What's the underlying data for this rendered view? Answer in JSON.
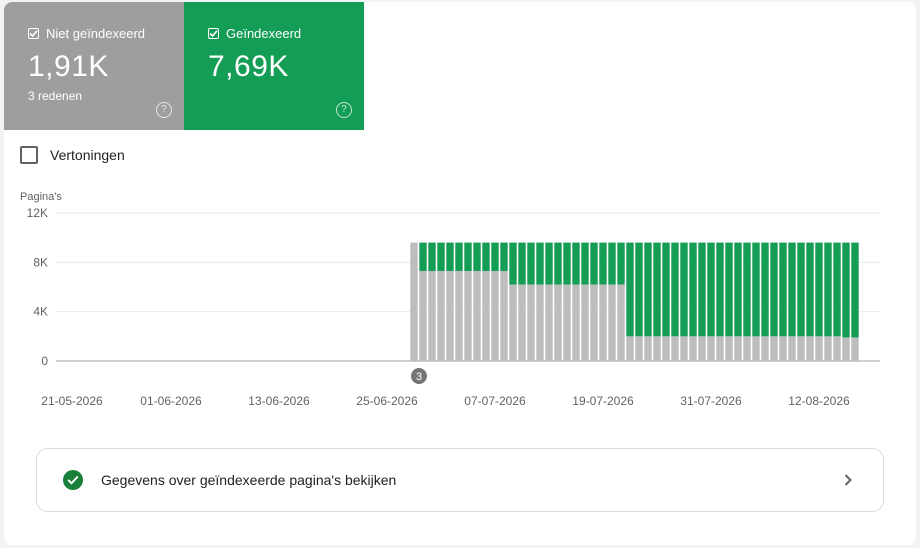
{
  "tiles": {
    "not_indexed": {
      "label": "Niet geïndexeerd",
      "value": "1,91K",
      "sub": "3 redenen",
      "checked": true,
      "color": "#9e9e9e"
    },
    "indexed": {
      "label": "Geïndexeerd",
      "value": "7,69K",
      "checked": true,
      "color": "#139d55"
    }
  },
  "impressions": {
    "label": "Vertoningen",
    "checked": false
  },
  "chart_data": {
    "type": "bar",
    "stacked": true,
    "ylabel": "Pagina's",
    "ylim": [
      0,
      12000
    ],
    "yticks": [
      "0",
      "4K",
      "8K",
      "12K"
    ],
    "xticks": [
      "21-05-2026",
      "01-06-2026",
      "13-06-2026",
      "25-06-2026",
      "07-07-2026",
      "19-07-2026",
      "31-07-2026",
      "12-08-2026"
    ],
    "annotation": {
      "label": "3"
    },
    "start_date": "2026-05-21",
    "series": [
      {
        "name": "Niet geïndexeerd",
        "color": "#bdbdbd",
        "segments": [
          {
            "from": "2026-06-28",
            "to": "2026-06-28",
            "value": 9600
          },
          {
            "from": "2026-06-29",
            "to": "2026-07-08",
            "value": 7300
          },
          {
            "from": "2026-07-09",
            "to": "2026-07-21",
            "value": 6200
          },
          {
            "from": "2026-07-22",
            "to": "2026-08-14",
            "value": 2000
          },
          {
            "from": "2026-08-15",
            "to": "2026-08-16",
            "value": 1910
          }
        ]
      },
      {
        "name": "Geïndexeerd",
        "color": "#139d55",
        "segments": [
          {
            "from": "2026-06-28",
            "to": "2026-06-28",
            "value": 0
          },
          {
            "from": "2026-06-29",
            "to": "2026-07-08",
            "value": 2300
          },
          {
            "from": "2026-07-09",
            "to": "2026-07-21",
            "value": 3400
          },
          {
            "from": "2026-07-22",
            "to": "2026-08-14",
            "value": 7600
          },
          {
            "from": "2026-08-15",
            "to": "2026-08-16",
            "value": 7690
          }
        ]
      }
    ]
  },
  "details": {
    "label": "Gegevens over geïndexeerde pagina's bekijken"
  }
}
